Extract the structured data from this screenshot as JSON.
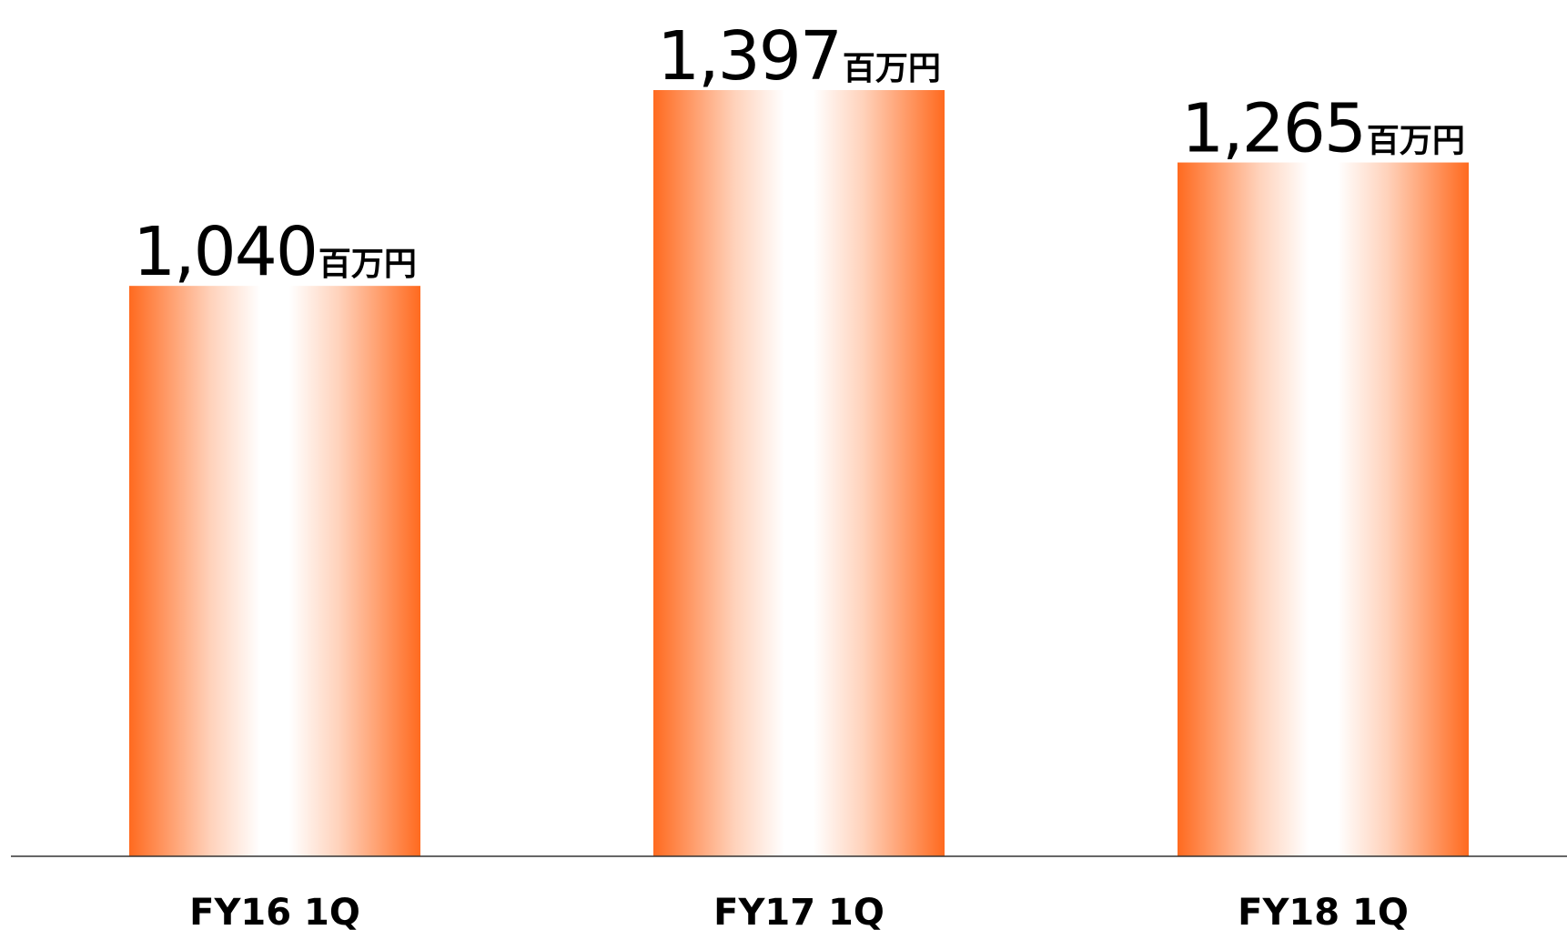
{
  "chart_data": {
    "type": "bar",
    "categories": [
      "FY16 1Q",
      "FY17 1Q",
      "FY18 1Q"
    ],
    "values": [
      1040,
      1397,
      1265
    ],
    "value_labels": [
      "1,040",
      "1,397",
      "1,265"
    ],
    "unit": "百万円",
    "title": "",
    "xlabel": "",
    "ylabel": "",
    "ylim": [
      0,
      1397
    ],
    "grid": false,
    "legend": "none",
    "colors": {
      "bar_edge": "#ff6a1f",
      "bar_center": "#ffffff",
      "axis": "#333333"
    }
  }
}
